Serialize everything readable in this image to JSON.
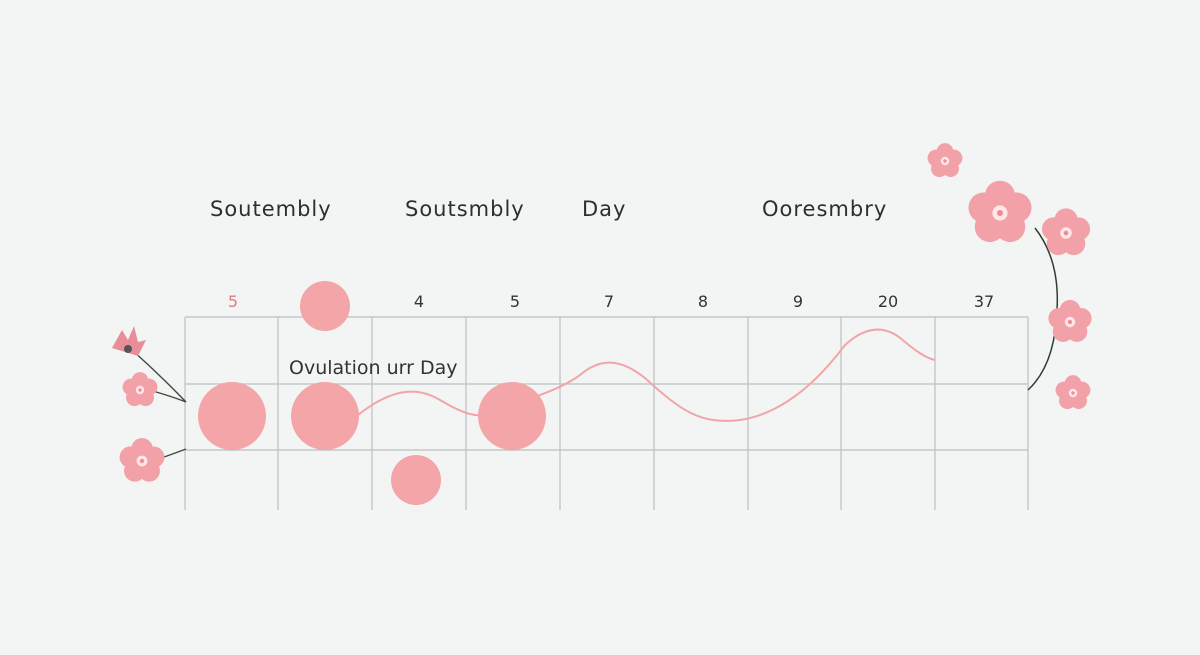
{
  "headers": [
    "Soutembly",
    "Soutsmbly",
    "Day",
    "Ooresmbry"
  ],
  "day_numbers": [
    "5",
    "",
    "4",
    "5",
    "7",
    "8",
    "9",
    "20",
    "37"
  ],
  "ovulation_label": "Ovulation urr Day",
  "colors": {
    "background": "#f3f5f5",
    "grid": "#bcbfc1",
    "dot": "#f4a5a8",
    "curve": "#f1a5a8",
    "accent_number": "#e07a86",
    "flower": "#f2a1a8",
    "flower_center": "#ffe6e8",
    "stem": "#3c4a3a"
  },
  "icons": [
    "flower-icon"
  ]
}
